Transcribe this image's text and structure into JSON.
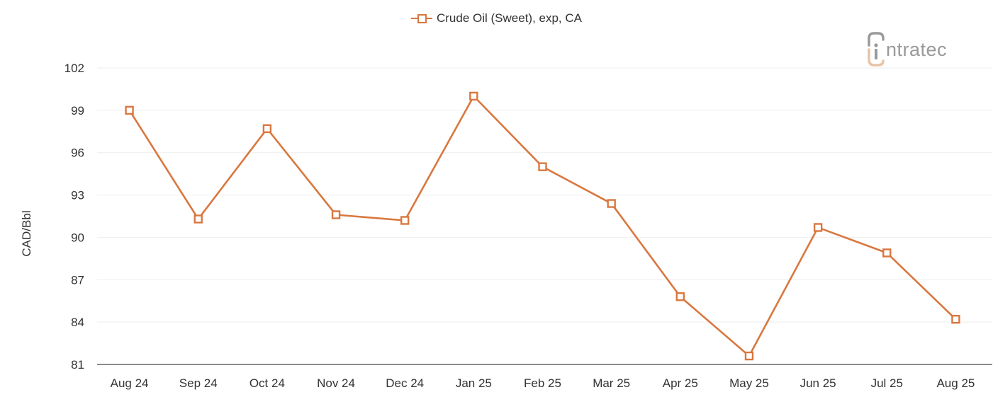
{
  "legend": {
    "label": "Crude Oil (Sweet), exp, CA",
    "color": "#d9773f"
  },
  "logo": {
    "text": "ntratec",
    "brand": "intratec",
    "accent_color": "#e8c4a6",
    "text_color": "#9a9a9a"
  },
  "axes": {
    "ylabel": "CAD/Bbl"
  },
  "chart_data": {
    "type": "line",
    "title": "",
    "xlabel": "",
    "ylabel": "CAD/Bbl",
    "ylim": [
      81,
      102
    ],
    "yticks": [
      81,
      84,
      87,
      90,
      93,
      96,
      99,
      102
    ],
    "grid": true,
    "legend_position": "top-center",
    "categories": [
      "Aug 24",
      "Sep 24",
      "Oct 24",
      "Nov 24",
      "Dec 24",
      "Jan 25",
      "Feb 25",
      "Mar 25",
      "Apr 25",
      "May 25",
      "Jun 25",
      "Jul 25",
      "Aug 25"
    ],
    "series": [
      {
        "name": "Crude Oil (Sweet), exp, CA",
        "color": "#d9773f",
        "marker": "hollow-square",
        "values": [
          99.0,
          91.3,
          97.7,
          91.6,
          91.2,
          100.0,
          95.0,
          92.4,
          85.8,
          81.6,
          90.7,
          88.9,
          84.2
        ]
      }
    ]
  }
}
